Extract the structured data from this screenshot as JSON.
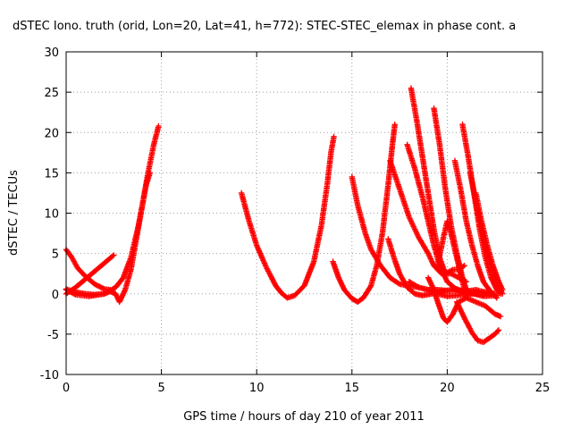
{
  "chart_data": {
    "type": "scatter",
    "title": "dSTEC Iono. truth (orid, Lon=20, Lat=41, h=772): STEC-STEC_elemax in phase cont. a",
    "xlabel": "GPS time / hours of day 210 of year 2011",
    "ylabel": "dSTEC  / TECUs",
    "xlim": [
      0,
      25
    ],
    "ylim": [
      -10,
      30
    ],
    "xticks": [
      "0",
      "5",
      "10",
      "15",
      "20",
      "25"
    ],
    "yticks": [
      "-10",
      "-5",
      "0",
      "5",
      "10",
      "15",
      "20",
      "25",
      "30"
    ],
    "grid": true,
    "marker": "plus",
    "color": "#ff0000",
    "series": [
      {
        "points": [
          [
            0.0,
            0.6
          ],
          [
            0.5,
            0.2
          ],
          [
            1.0,
            0.0
          ],
          [
            1.5,
            -0.1
          ],
          [
            2.0,
            0.0
          ],
          [
            2.3,
            0.3
          ],
          [
            2.6,
            0.0
          ],
          [
            2.8,
            -1.0
          ],
          [
            3.1,
            0.5
          ],
          [
            3.4,
            3.0
          ],
          [
            3.7,
            7.0
          ],
          [
            4.0,
            11.0
          ],
          [
            4.3,
            15.0
          ],
          [
            4.6,
            18.5
          ],
          [
            4.85,
            20.8
          ]
        ]
      },
      {
        "points": [
          [
            0.0,
            5.5
          ],
          [
            0.3,
            4.5
          ],
          [
            0.6,
            3.2
          ],
          [
            1.0,
            2.2
          ],
          [
            1.5,
            1.2
          ],
          [
            2.0,
            0.6
          ],
          [
            2.3,
            0.5
          ]
        ]
      },
      {
        "points": [
          [
            0.0,
            0.0
          ],
          [
            0.5,
            0.8
          ],
          [
            1.0,
            1.8
          ],
          [
            1.5,
            2.8
          ],
          [
            2.0,
            3.8
          ],
          [
            2.5,
            4.8
          ]
        ]
      },
      {
        "points": [
          [
            0.0,
            0.5
          ],
          [
            0.5,
            -0.1
          ],
          [
            1.2,
            -0.3
          ],
          [
            2.0,
            0.0
          ],
          [
            2.6,
            0.8
          ],
          [
            3.0,
            2.0
          ],
          [
            3.4,
            4.5
          ],
          [
            3.8,
            8.5
          ],
          [
            4.0,
            11.0
          ],
          [
            4.2,
            13.5
          ],
          [
            4.4,
            15.0
          ]
        ]
      },
      {
        "points": [
          [
            9.2,
            12.5
          ],
          [
            9.6,
            9.0
          ],
          [
            10.0,
            6.0
          ],
          [
            10.5,
            3.3
          ],
          [
            11.0,
            1.0
          ],
          [
            11.3,
            0.1
          ],
          [
            11.6,
            -0.5
          ],
          [
            12.0,
            -0.2
          ],
          [
            12.5,
            1.0
          ],
          [
            13.0,
            4.0
          ],
          [
            13.4,
            8.5
          ],
          [
            13.7,
            13.5
          ],
          [
            13.9,
            17.5
          ],
          [
            14.05,
            19.5
          ]
        ]
      },
      {
        "points": [
          [
            14.0,
            4.0
          ],
          [
            14.3,
            2.0
          ],
          [
            14.6,
            0.5
          ],
          [
            15.0,
            -0.6
          ],
          [
            15.3,
            -1.0
          ],
          [
            15.6,
            -0.5
          ],
          [
            16.0,
            1.0
          ],
          [
            16.3,
            3.5
          ],
          [
            16.6,
            7.5
          ],
          [
            16.9,
            13.5
          ],
          [
            17.1,
            18.0
          ],
          [
            17.25,
            21.0
          ]
        ]
      },
      {
        "points": [
          [
            15.0,
            14.5
          ],
          [
            15.3,
            11.0
          ],
          [
            15.7,
            7.5
          ],
          [
            16.0,
            5.5
          ],
          [
            16.5,
            3.5
          ],
          [
            17.0,
            2.0
          ],
          [
            17.5,
            1.2
          ],
          [
            18.0,
            1.0
          ],
          [
            18.5,
            0.8
          ],
          [
            19.0,
            0.5
          ],
          [
            19.5,
            0.5
          ],
          [
            20.0,
            0.4
          ],
          [
            20.5,
            0.6
          ],
          [
            21.0,
            0.2
          ],
          [
            21.5,
            0.0
          ],
          [
            22.0,
            0.0
          ],
          [
            22.5,
            0.0
          ]
        ]
      },
      {
        "points": [
          [
            16.9,
            6.8
          ],
          [
            17.2,
            4.5
          ],
          [
            17.5,
            2.5
          ],
          [
            17.9,
            0.8
          ],
          [
            18.3,
            0.0
          ],
          [
            18.7,
            -0.2
          ],
          [
            19.2,
            0.0
          ],
          [
            19.7,
            0.3
          ],
          [
            20.3,
            0.5
          ],
          [
            21.0,
            0.3
          ],
          [
            21.5,
            0.5
          ],
          [
            22.0,
            0.2
          ],
          [
            22.5,
            0.0
          ]
        ]
      },
      {
        "points": [
          [
            17.0,
            16.5
          ],
          [
            17.5,
            13.0
          ],
          [
            18.0,
            9.5
          ],
          [
            18.5,
            7.0
          ],
          [
            19.0,
            5.0
          ],
          [
            19.3,
            3.5
          ],
          [
            19.7,
            2.5
          ],
          [
            20.2,
            2.5
          ],
          [
            20.6,
            2.0
          ],
          [
            21.0,
            1.5
          ]
        ]
      },
      {
        "points": [
          [
            17.9,
            18.5
          ],
          [
            18.3,
            15.5
          ],
          [
            18.7,
            12.0
          ],
          [
            19.0,
            9.0
          ],
          [
            19.3,
            6.0
          ],
          [
            19.6,
            3.5
          ],
          [
            20.0,
            1.5
          ],
          [
            20.5,
            0.5
          ],
          [
            21.0,
            0.0
          ],
          [
            21.5,
            0.0
          ],
          [
            22.0,
            0.2
          ]
        ]
      },
      {
        "points": [
          [
            18.1,
            25.5
          ],
          [
            18.4,
            21.5
          ],
          [
            18.7,
            17.0
          ],
          [
            19.0,
            12.5
          ],
          [
            19.3,
            8.0
          ],
          [
            19.6,
            4.5
          ],
          [
            19.9,
            2.5
          ],
          [
            20.3,
            3.0
          ],
          [
            20.6,
            3.0
          ],
          [
            20.9,
            3.5
          ]
        ]
      },
      {
        "points": [
          [
            19.3,
            23.0
          ],
          [
            19.6,
            18.5
          ],
          [
            19.9,
            13.0
          ],
          [
            20.2,
            8.5
          ],
          [
            20.5,
            5.0
          ],
          [
            20.8,
            2.0
          ],
          [
            21.0,
            0.5
          ],
          [
            21.4,
            0.0
          ],
          [
            21.9,
            -0.3
          ]
        ]
      },
      {
        "points": [
          [
            18.0,
            1.5
          ],
          [
            18.5,
            0.8
          ],
          [
            19.0,
            0.5
          ],
          [
            19.5,
            0.0
          ],
          [
            20.0,
            -0.3
          ],
          [
            20.5,
            -0.2
          ],
          [
            21.0,
            0.0
          ],
          [
            21.5,
            0.2
          ],
          [
            22.0,
            -0.3
          ],
          [
            22.6,
            -0.2
          ]
        ]
      },
      {
        "points": [
          [
            19.0,
            2.0
          ],
          [
            19.3,
            0.5
          ],
          [
            19.5,
            -1.0
          ],
          [
            19.8,
            -3.0
          ],
          [
            20.0,
            -3.5
          ],
          [
            20.3,
            -2.5
          ],
          [
            20.6,
            -1.0
          ],
          [
            21.0,
            -0.5
          ],
          [
            21.5,
            -1.0
          ],
          [
            22.0,
            -1.5
          ],
          [
            22.5,
            -2.5
          ],
          [
            22.8,
            -2.8
          ]
        ]
      },
      {
        "points": [
          [
            19.5,
            3.5
          ],
          [
            19.8,
            7.0
          ],
          [
            20.0,
            9.0
          ],
          [
            20.2,
            7.5
          ],
          [
            20.5,
            4.5
          ],
          [
            20.8,
            1.5
          ],
          [
            21.0,
            -0.5
          ]
        ]
      },
      {
        "points": [
          [
            20.5,
            -1.0
          ],
          [
            20.9,
            -3.0
          ],
          [
            21.3,
            -4.8
          ],
          [
            21.6,
            -5.8
          ],
          [
            21.9,
            -6.0
          ],
          [
            22.2,
            -5.5
          ],
          [
            22.5,
            -5.0
          ],
          [
            22.7,
            -4.5
          ]
        ]
      },
      {
        "points": [
          [
            20.4,
            16.5
          ],
          [
            20.7,
            13.0
          ],
          [
            21.0,
            9.0
          ],
          [
            21.3,
            6.0
          ],
          [
            21.6,
            3.5
          ],
          [
            21.9,
            1.5
          ],
          [
            22.2,
            0.5
          ],
          [
            22.6,
            -0.5
          ]
        ]
      },
      {
        "points": [
          [
            20.8,
            21.0
          ],
          [
            21.1,
            17.0
          ],
          [
            21.4,
            12.5
          ],
          [
            21.7,
            8.0
          ],
          [
            22.0,
            4.5
          ],
          [
            22.3,
            2.0
          ],
          [
            22.6,
            0.5
          ],
          [
            22.8,
            0.0
          ]
        ]
      },
      {
        "points": [
          [
            21.2,
            15.0
          ],
          [
            21.5,
            11.5
          ],
          [
            21.8,
            8.0
          ],
          [
            22.1,
            5.0
          ],
          [
            22.4,
            2.5
          ],
          [
            22.7,
            1.0
          ],
          [
            22.9,
            0.0
          ]
        ]
      },
      {
        "points": [
          [
            21.5,
            12.5
          ],
          [
            21.8,
            9.0
          ],
          [
            22.1,
            6.0
          ],
          [
            22.4,
            3.5
          ],
          [
            22.7,
            1.5
          ],
          [
            22.9,
            0.5
          ]
        ]
      }
    ]
  }
}
